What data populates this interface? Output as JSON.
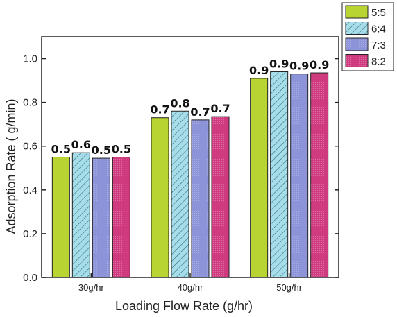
{
  "chart_data": {
    "type": "bar",
    "title": "",
    "xlabel": "Loading Flow Rate  (g/hr)",
    "ylabel": "Adsorption Rate ( g/min)",
    "categories": [
      "30g/hr",
      "40g/hr",
      "50g/hr"
    ],
    "ylim": [
      0,
      1.1
    ],
    "yticks": [
      "0.0",
      "0.2",
      "0.4",
      "0.6",
      "0.8",
      "1.0"
    ],
    "grid": false,
    "legend_position": "top-right",
    "series": [
      {
        "name": "5:5",
        "values": [
          0.55,
          0.73,
          0.91
        ],
        "labels": [
          "0.5",
          "0.7",
          "0.9"
        ],
        "color": "#b8d432",
        "pattern": "solid"
      },
      {
        "name": "6:4",
        "values": [
          0.57,
          0.76,
          0.94
        ],
        "labels": [
          "0.6",
          "0.8",
          "0.9"
        ],
        "color": "#a6dde8",
        "pattern": "hatch"
      },
      {
        "name": "7:3",
        "values": [
          0.545,
          0.72,
          0.93
        ],
        "labels": [
          "0.5",
          "0.7",
          "0.9"
        ],
        "color": "#8c93d8",
        "pattern": "dots"
      },
      {
        "name": "8:2",
        "values": [
          0.55,
          0.735,
          0.935
        ],
        "labels": [
          "0.5",
          "0.7",
          "0.9"
        ],
        "color": "#cf3a7e",
        "pattern": "dots"
      }
    ]
  }
}
